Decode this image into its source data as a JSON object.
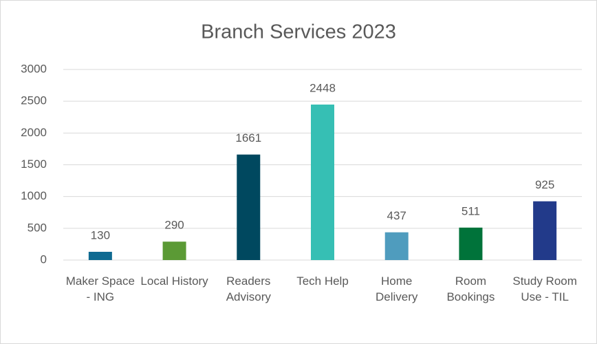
{
  "chart_data": {
    "type": "bar",
    "title": "Branch Services 2023",
    "categories": [
      "Maker Space - ING",
      "Local History",
      "Readers Advisory",
      "Tech Help",
      "Home Delivery",
      "Room Bookings",
      "Study Room Use - TIL"
    ],
    "values": [
      130,
      290,
      1661,
      2448,
      437,
      511,
      925
    ],
    "colors": [
      "#0f6a91",
      "#5b9a35",
      "#00485f",
      "#36bfb4",
      "#4f9cbe",
      "#00733a",
      "#223a8a"
    ],
    "ylim": [
      0,
      3000
    ],
    "yticks": [
      0,
      500,
      1000,
      1500,
      2000,
      2500,
      3000
    ],
    "grid": true
  }
}
